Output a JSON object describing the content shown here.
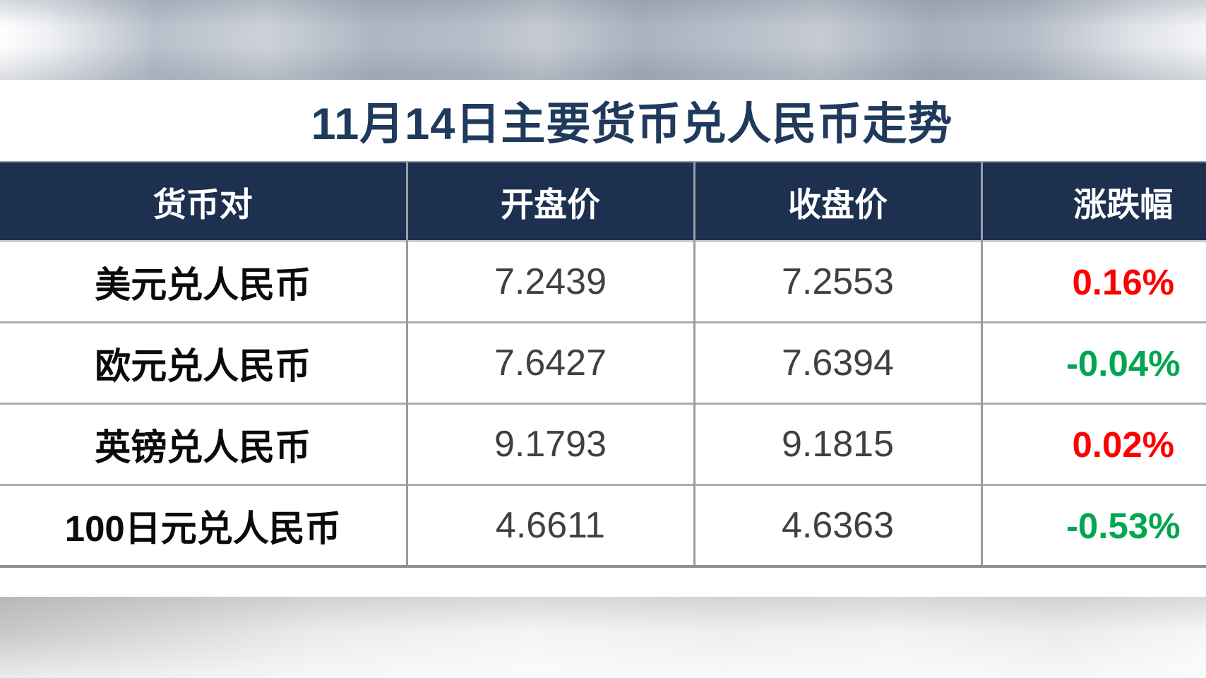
{
  "chart_data": {
    "type": "table",
    "title": "11月14日主要货币兑人民币走势",
    "columns": [
      "货币对",
      "开盘价",
      "收盘价",
      "涨跌幅"
    ],
    "rows": [
      {
        "pair": "美元兑人民币",
        "open": "7.2439",
        "close": "7.2553",
        "change": "0.16%",
        "direction": "up"
      },
      {
        "pair": "欧元兑人民币",
        "open": "7.6427",
        "close": "7.6394",
        "change": "-0.04%",
        "direction": "down"
      },
      {
        "pair": "英镑兑人民币",
        "open": "9.1793",
        "close": "9.1815",
        "change": "0.02%",
        "direction": "up"
      },
      {
        "pair": "100日元兑人民币",
        "open": "4.6611",
        "close": "4.6363",
        "change": "-0.53%",
        "direction": "down"
      }
    ],
    "layout": {
      "grid": "on",
      "header_position": "top"
    }
  },
  "palette": {
    "up": "#fe0000",
    "down": "#00a651",
    "header_bg": "#1d3050",
    "title": "#203a5c"
  }
}
